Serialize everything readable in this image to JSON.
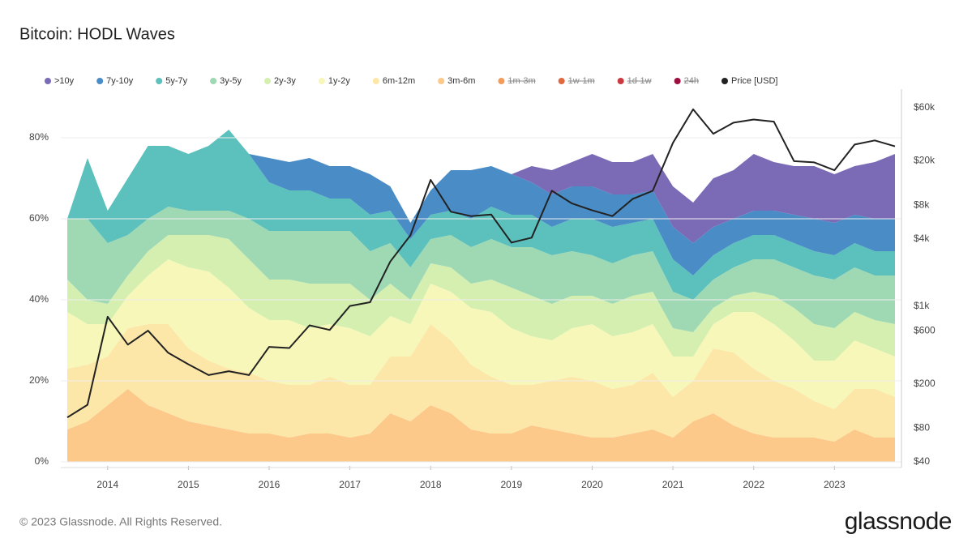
{
  "chart_data": {
    "type": "stacked-area",
    "title": "Bitcoin: HODL Waves",
    "x": [
      2013.5,
      2013.75,
      2014,
      2014.25,
      2014.5,
      2014.75,
      2015,
      2015.25,
      2015.5,
      2015.75,
      2016,
      2016.25,
      2016.5,
      2016.75,
      2017,
      2017.25,
      2017.5,
      2017.75,
      2018,
      2018.25,
      2018.5,
      2018.75,
      2019,
      2019.25,
      2019.5,
      2019.75,
      2020,
      2020.25,
      2020.5,
      2020.75,
      2021,
      2021.25,
      2021.5,
      2021.75,
      2022,
      2022.25,
      2022.5,
      2022.75,
      2023,
      2023.25,
      2023.5,
      2023.75
    ],
    "xlim": [
      2013.42,
      2023.83
    ],
    "xticks": [
      2014,
      2015,
      2016,
      2017,
      2018,
      2019,
      2020,
      2021,
      2022,
      2023
    ],
    "ylim": [
      0,
      92
    ],
    "yticks": [
      {
        "value": 0,
        "label": "0%"
      },
      {
        "value": 20,
        "label": "20%"
      },
      {
        "value": 40,
        "label": "40%"
      },
      {
        "value": 60,
        "label": "60%"
      },
      {
        "value": 80,
        "label": "80%"
      }
    ],
    "y2lim": [
      40,
      88000
    ],
    "y2scale": "log",
    "y2ticks": [
      {
        "value": 40,
        "label": "$40"
      },
      {
        "value": 80,
        "label": "$80"
      },
      {
        "value": 200,
        "label": "$200"
      },
      {
        "value": 600,
        "label": "$600"
      },
      {
        "value": 1000,
        "label": "$1k"
      },
      {
        "value": 4000,
        "label": "$4k"
      },
      {
        "value": 8000,
        "label": "$8k"
      },
      {
        "value": 20000,
        "label": "$20k"
      },
      {
        "value": 60000,
        "label": "$60k"
      }
    ],
    "grid": true,
    "series": [
      {
        "name": ">10y",
        "color": "#7b6bb6",
        "values": [
          0,
          0,
          0,
          0,
          0,
          0,
          0,
          0,
          0,
          0,
          0,
          0,
          0,
          0,
          0,
          0,
          0,
          0,
          0,
          0,
          0,
          0,
          0,
          4,
          6,
          6,
          8,
          8,
          8,
          9,
          10,
          10,
          12,
          12,
          14,
          12,
          12,
          13,
          12,
          12,
          14,
          16
        ]
      },
      {
        "name": "7y-10y",
        "color": "#4a8cc6",
        "values": [
          0,
          0,
          0,
          0,
          0,
          0,
          0,
          0,
          0,
          0,
          6,
          7,
          8,
          8,
          8,
          10,
          6,
          4,
          6,
          10,
          12,
          10,
          10,
          8,
          8,
          8,
          8,
          8,
          7,
          7,
          8,
          8,
          7,
          6,
          6,
          6,
          7,
          8,
          8,
          7,
          8,
          8
        ]
      },
      {
        "name": "5y-7y",
        "color": "#5cc0bc",
        "values": [
          0,
          15,
          8,
          14,
          18,
          15,
          14,
          16,
          20,
          16,
          12,
          10,
          10,
          8,
          8,
          9,
          8,
          7,
          6,
          6,
          7,
          8,
          8,
          8,
          7,
          8,
          9,
          9,
          8,
          8,
          8,
          6,
          6,
          6,
          6,
          6,
          6,
          6,
          6,
          6,
          6,
          6
        ]
      },
      {
        "name": "3y-5y",
        "color": "#9fd9b4",
        "values": [
          15,
          20,
          15,
          10,
          8,
          7,
          6,
          6,
          7,
          10,
          12,
          12,
          13,
          13,
          13,
          12,
          10,
          8,
          6,
          8,
          9,
          10,
          10,
          12,
          12,
          11,
          10,
          10,
          10,
          10,
          9,
          8,
          7,
          7,
          8,
          9,
          10,
          12,
          12,
          11,
          11,
          12
        ]
      },
      {
        "name": "2y-3y",
        "color": "#d4efb0",
        "values": [
          8,
          6,
          5,
          5,
          6,
          6,
          8,
          9,
          12,
          12,
          10,
          10,
          11,
          10,
          11,
          9,
          8,
          6,
          5,
          6,
          6,
          8,
          10,
          10,
          9,
          8,
          7,
          8,
          9,
          8,
          7,
          6,
          4,
          4,
          5,
          7,
          8,
          9,
          8,
          7,
          7,
          8
        ]
      },
      {
        "name": "1y-2y",
        "color": "#f6f7b8",
        "values": [
          14,
          10,
          8,
          8,
          12,
          16,
          20,
          22,
          20,
          16,
          15,
          16,
          14,
          13,
          14,
          12,
          10,
          8,
          10,
          12,
          14,
          16,
          14,
          12,
          10,
          12,
          14,
          13,
          13,
          12,
          10,
          6,
          6,
          10,
          14,
          14,
          12,
          10,
          12,
          12,
          10,
          10
        ]
      },
      {
        "name": "6m-12m",
        "color": "#fde7a8",
        "values": [
          15,
          14,
          12,
          15,
          20,
          22,
          18,
          16,
          15,
          15,
          13,
          13,
          12,
          14,
          13,
          12,
          14,
          16,
          20,
          18,
          16,
          14,
          12,
          10,
          12,
          14,
          14,
          12,
          12,
          14,
          10,
          10,
          16,
          18,
          16,
          14,
          12,
          9,
          8,
          10,
          12,
          10
        ]
      },
      {
        "name": "3m-6m",
        "color": "#fcc98b",
        "values": [
          8,
          10,
          14,
          18,
          14,
          12,
          10,
          9,
          8,
          7,
          7,
          6,
          7,
          7,
          6,
          7,
          12,
          10,
          14,
          12,
          8,
          7,
          7,
          9,
          8,
          7,
          6,
          6,
          7,
          8,
          6,
          10,
          12,
          9,
          7,
          6,
          6,
          6,
          5,
          8,
          6,
          6
        ]
      },
      {
        "name": "1m-3m",
        "color": "#f39c5a",
        "hidden": true
      },
      {
        "name": "1w-1m",
        "color": "#e4683f",
        "hidden": true
      },
      {
        "name": "1d-1w",
        "color": "#c93a41",
        "hidden": true
      },
      {
        "name": "24h",
        "color": "#9c0f3e",
        "hidden": true
      },
      {
        "name": "Price [USD]",
        "color": "#222222",
        "type": "line",
        "axis": "y2",
        "values": [
          100,
          130,
          800,
          450,
          600,
          380,
          300,
          240,
          260,
          240,
          430,
          420,
          670,
          610,
          1000,
          1080,
          2500,
          4300,
          13500,
          7000,
          6400,
          6600,
          3700,
          4100,
          10800,
          8300,
          7200,
          6400,
          9100,
          10800,
          29000,
          58000,
          35000,
          44000,
          47000,
          45000,
          19900,
          19400,
          16500,
          28000,
          30500,
          27000
        ]
      }
    ]
  },
  "footer": {
    "copyright": "© 2023 Glassnode. All Rights Reserved.",
    "brand": "glassnode"
  }
}
